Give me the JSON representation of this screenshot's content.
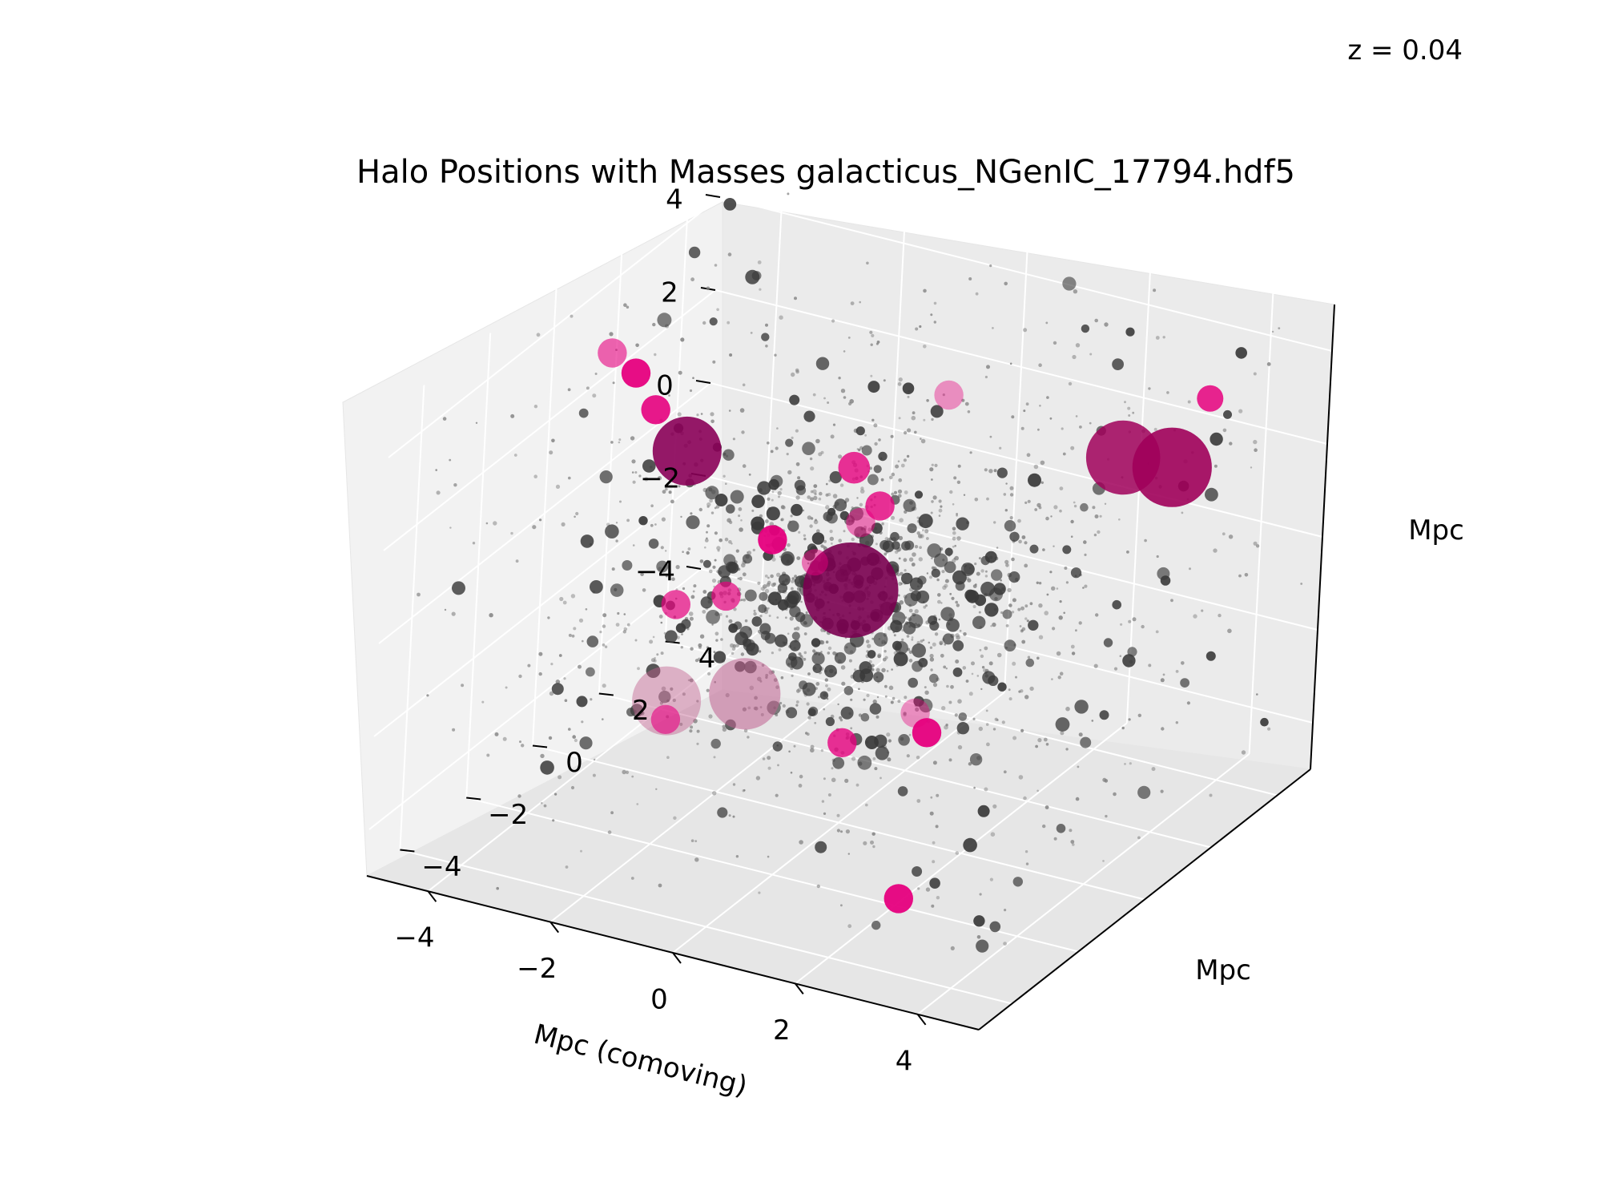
{
  "figure": {
    "title": "Halo Positions with Masses galacticus_NGenIC_17794.hdf5",
    "redshift_label": "z = 0.04"
  },
  "chart_data": {
    "type": "scatter",
    "projection": "3d",
    "title": "Halo Positions with Masses galacticus_NGenIC_17794.hdf5",
    "annotation": "z = 0.04",
    "xlabel": "Mpc (comoving)",
    "ylabel": "Mpc",
    "zlabel": "Mpc",
    "xlim": [
      -5,
      5
    ],
    "ylim": [
      -5,
      5
    ],
    "zlim": [
      -5,
      5
    ],
    "xticks": [
      "−4",
      "−2",
      "0",
      "2",
      "4"
    ],
    "yticks": [
      "−4",
      "−2",
      "0",
      "2",
      "4"
    ],
    "zticks": [
      "−4",
      "−2",
      "0",
      "2",
      "4"
    ],
    "grid": true,
    "colors": {
      "small_halo": "#808080",
      "medium_halo": "#3a3a3a",
      "large_halo": "#e6007e",
      "largest_halo": "#7a0050",
      "pane": "#f2f2f2"
    },
    "large_halos": [
      {
        "x": 0.0,
        "y": 0.0,
        "z": 0.0,
        "size": 3.6,
        "color": "#7a0050",
        "alpha": 0.9
      },
      {
        "x": -2.6,
        "y": -0.3,
        "z": 2.3,
        "size": 2.6,
        "color": "#8a0058",
        "alpha": 0.9
      },
      {
        "x": 2.9,
        "y": 2.7,
        "z": 2.3,
        "size": 2.8,
        "color": "#a0005a",
        "alpha": 0.85
      },
      {
        "x": 3.8,
        "y": 2.5,
        "z": 2.5,
        "size": 3.0,
        "color": "#a0005a",
        "alpha": 0.9
      },
      {
        "x": -1.8,
        "y": -2.1,
        "z": -1.8,
        "size": 2.6,
        "color": "#c0608f",
        "alpha": 0.45
      },
      {
        "x": -0.8,
        "y": -1.6,
        "z": -1.6,
        "size": 2.7,
        "color": "#c0608f",
        "alpha": 0.55
      },
      {
        "x": -4.3,
        "y": 0.5,
        "z": 3.4,
        "size": 1.1,
        "color": "#e6007e",
        "alpha": 0.6
      },
      {
        "x": -3.9,
        "y": 0.5,
        "z": 3.1,
        "size": 1.1,
        "color": "#e6007e",
        "alpha": 0.95
      },
      {
        "x": -3.5,
        "y": 0.4,
        "z": 2.5,
        "size": 1.1,
        "color": "#e6007e",
        "alpha": 0.9
      },
      {
        "x": -1.2,
        "y": -0.2,
        "z": 0.8,
        "size": 1.1,
        "color": "#e6007e",
        "alpha": 0.95
      },
      {
        "x": -1.8,
        "y": -0.4,
        "z": -0.5,
        "size": 1.1,
        "color": "#e6007e",
        "alpha": 0.7
      },
      {
        "x": -2.5,
        "y": -0.6,
        "z": -0.8,
        "size": 1.1,
        "color": "#e6007e",
        "alpha": 0.7
      },
      {
        "x": 0.6,
        "y": 1.6,
        "z": 3.5,
        "size": 1.1,
        "color": "#e6007e",
        "alpha": 0.4
      },
      {
        "x": -0.2,
        "y": 0.3,
        "z": 2.4,
        "size": 1.2,
        "color": "#e6007e",
        "alpha": 0.8
      },
      {
        "x": -0.1,
        "y": 0.4,
        "z": 1.2,
        "size": 1.1,
        "color": "#e6007e",
        "alpha": 0.5
      },
      {
        "x": 0.3,
        "y": 0.2,
        "z": 1.8,
        "size": 1.1,
        "color": "#e6007e",
        "alpha": 0.8
      },
      {
        "x": -1.8,
        "y": -2.1,
        "z": -2.2,
        "size": 1.1,
        "color": "#e6007e",
        "alpha": 0.6
      },
      {
        "x": 0.4,
        "y": -0.8,
        "z": -2.7,
        "size": 1.1,
        "color": "#e6007e",
        "alpha": 0.8
      },
      {
        "x": 1.5,
        "y": -0.3,
        "z": -2.4,
        "size": 1.1,
        "color": "#e6007e",
        "alpha": 0.95
      },
      {
        "x": 1.4,
        "y": -0.5,
        "z": -1.9,
        "size": 1.1,
        "color": "#e6007e",
        "alpha": 0.4
      },
      {
        "x": 1.8,
        "y": -1.5,
        "z": -5.2,
        "size": 1.1,
        "color": "#e6007e",
        "alpha": 0.95
      },
      {
        "x": 4.1,
        "y": 3.0,
        "z": 3.8,
        "size": 1.0,
        "color": "#e6007e",
        "alpha": 0.85
      },
      {
        "x": -0.6,
        "y": 0.0,
        "z": 0.4,
        "size": 1.0,
        "color": "#e6007e",
        "alpha": 0.5
      }
    ],
    "medium_halo_count": 320,
    "small_halo_count": 1500
  }
}
